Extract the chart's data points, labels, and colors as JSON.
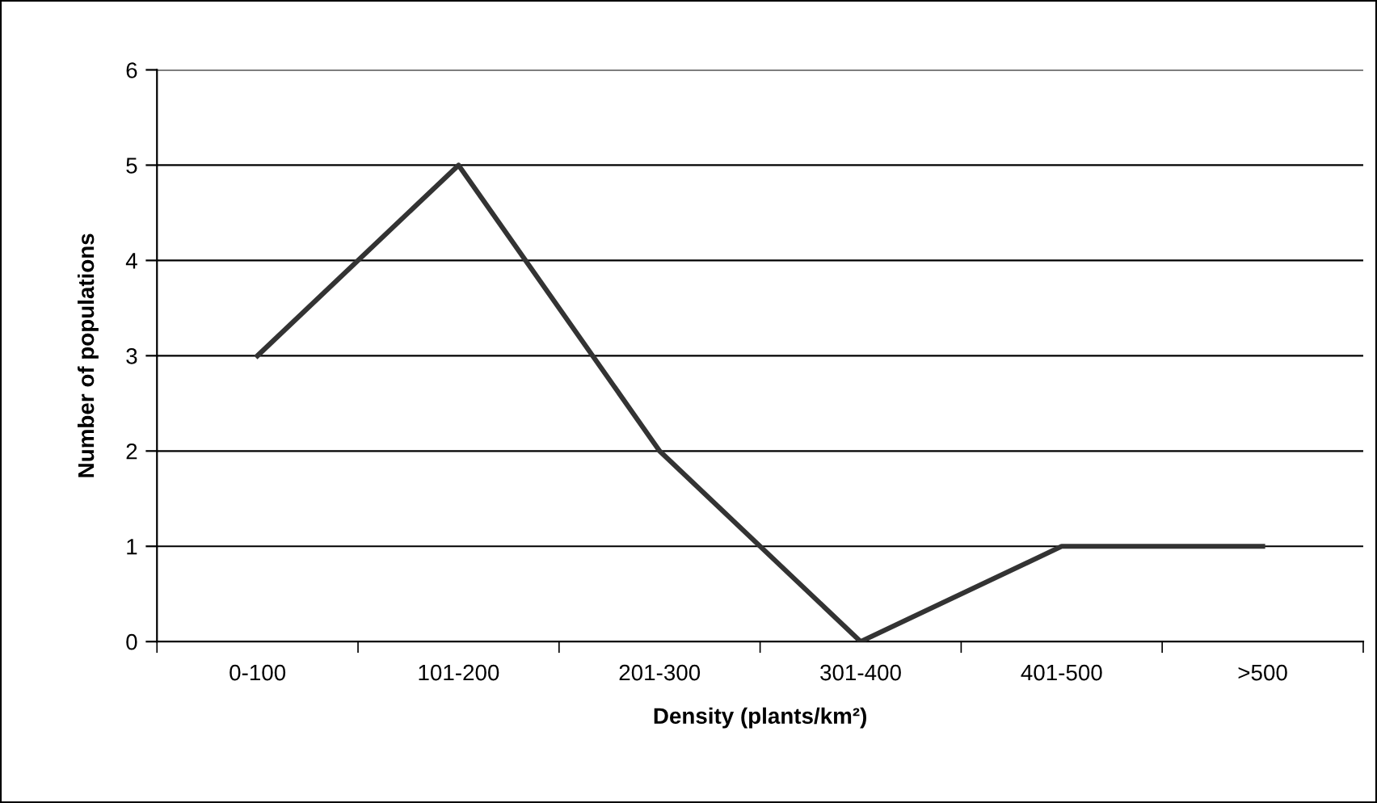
{
  "chart_data": {
    "type": "line",
    "xlabel": "Density (plants/km²)",
    "ylabel": "Number of populations",
    "categories": [
      "0-100",
      "101-200",
      "201-300",
      "301-400",
      "401-500",
      ">500"
    ],
    "series": [
      {
        "color": "#333333",
        "values": [
          3,
          5,
          2,
          0,
          1,
          1
        ]
      }
    ],
    "ylim": [
      0,
      6
    ],
    "yticks": [
      0,
      1,
      2,
      3,
      4,
      5,
      6
    ],
    "grid": "y",
    "legend": false,
    "marker": "none",
    "line_style": "solid"
  }
}
